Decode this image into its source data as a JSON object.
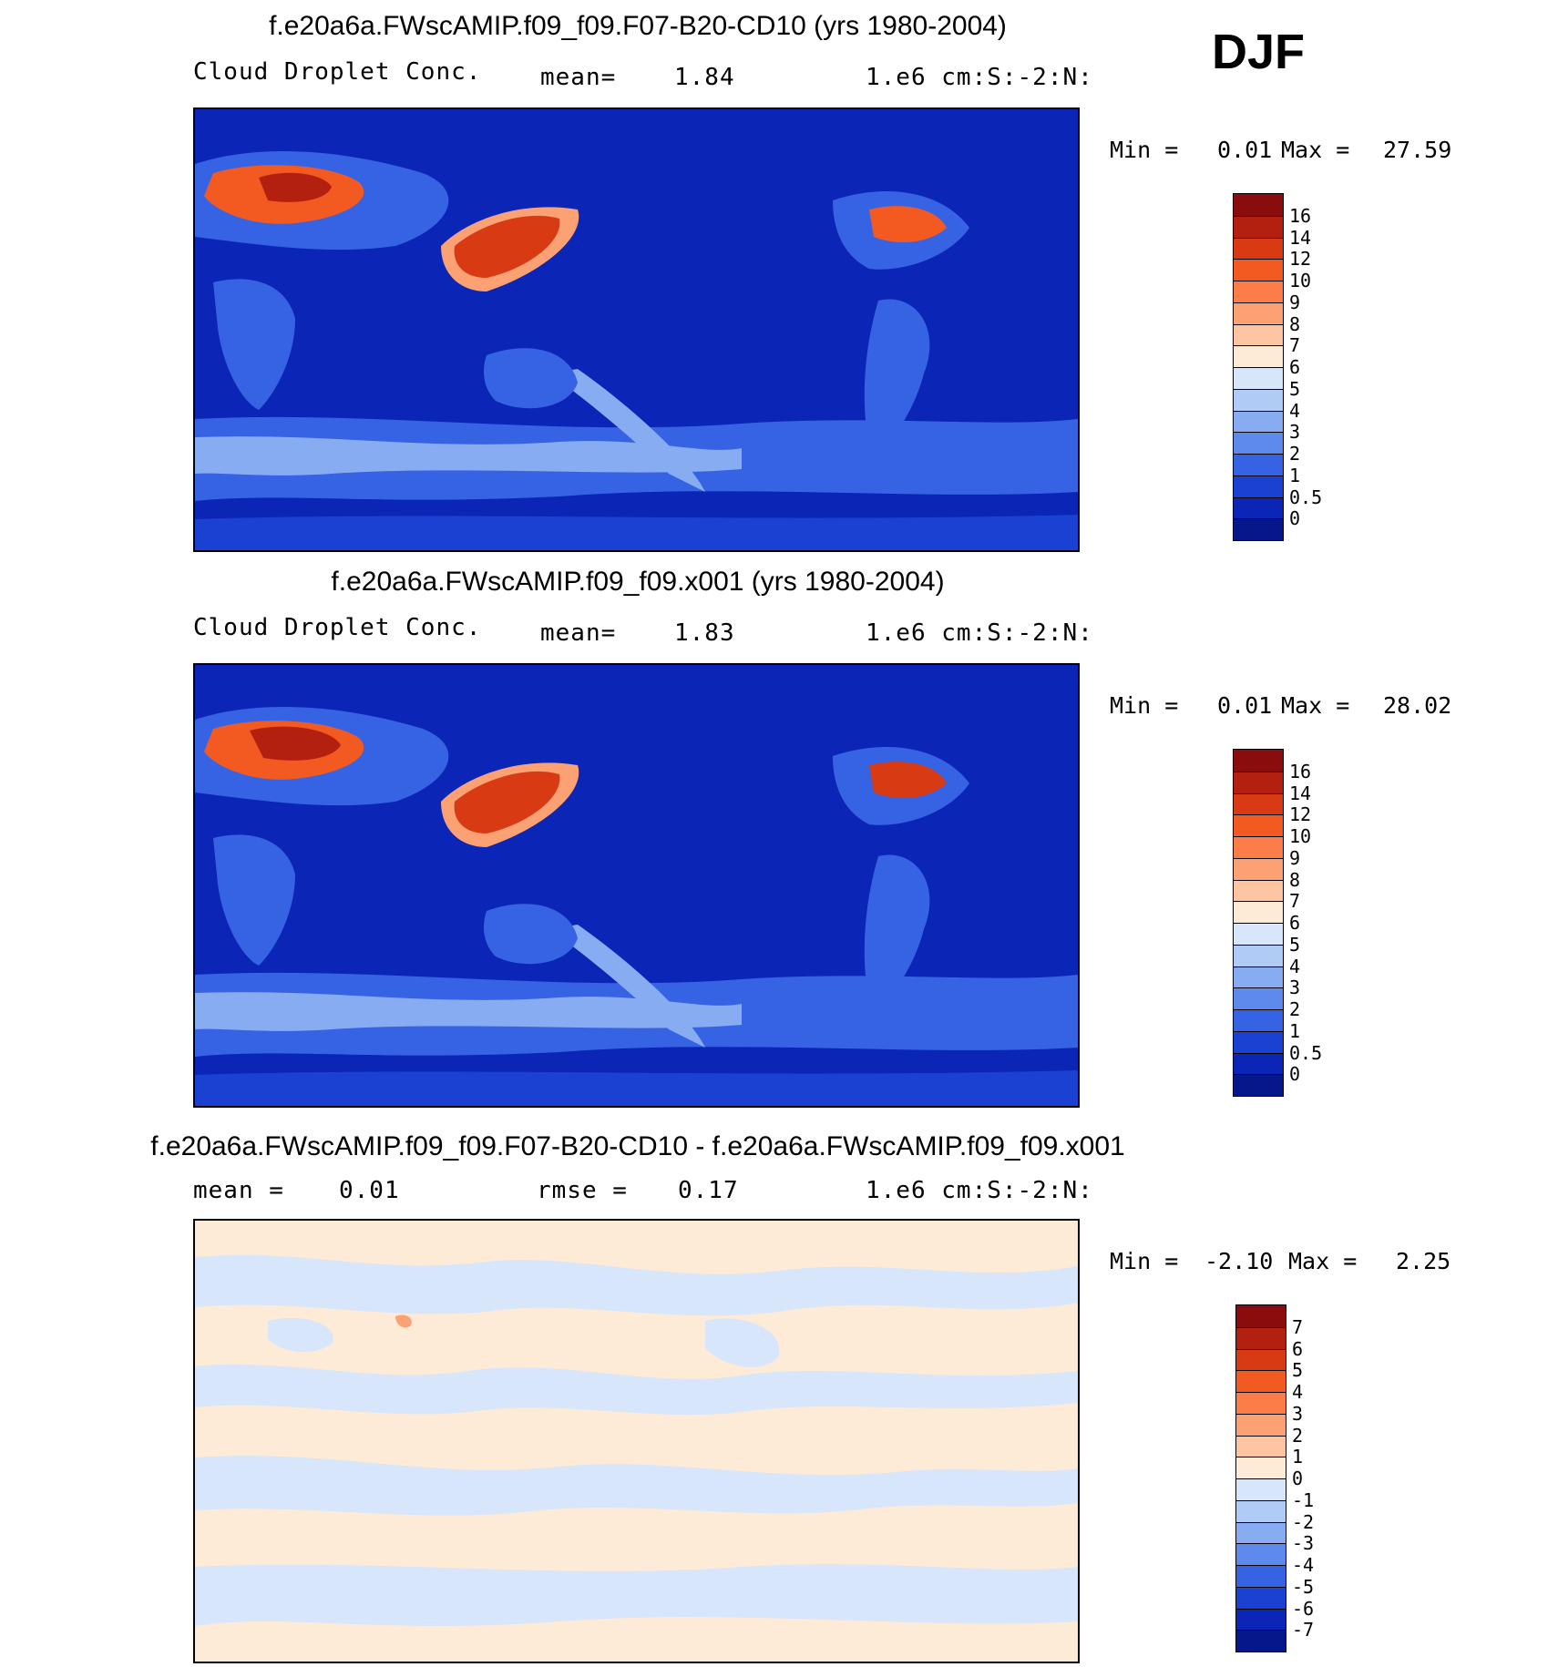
{
  "season": "DJF",
  "panels": [
    {
      "title": "f.e20a6a.FWscAMIP.f09_f09.F07-B20-CD10 (yrs 1980-2004)",
      "left_label": "Cloud Droplet Conc.",
      "mid_label": "mean=",
      "mid_value": "1.84",
      "units": "1.e6 cm:S:-2:N:",
      "min_label": "Min =",
      "min_value": "0.01",
      "max_label": "Max =",
      "max_value": "27.59",
      "colorbar_labels": [
        "16",
        "14",
        "12",
        "10",
        "9",
        "8",
        "7",
        "6",
        "5",
        "4",
        "3",
        "2",
        "1",
        "0.5",
        "0"
      ],
      "colorbar_colors": [
        "#8b0c0c",
        "#b3200f",
        "#d83a13",
        "#f25a22",
        "#fc7d47",
        "#fca173",
        "#fdc5a2",
        "#fdebd8",
        "#d7e6fa",
        "#b0cbf6",
        "#87acf2",
        "#5d8aec",
        "#3663e4",
        "#1b41d2",
        "#0b26b6",
        "#05178a"
      ]
    },
    {
      "title": "f.e20a6a.FWscAMIP.f09_f09.x001 (yrs 1980-2004)",
      "left_label": "Cloud Droplet Conc.",
      "mid_label": "mean=",
      "mid_value": "1.83",
      "units": "1.e6 cm:S:-2:N:",
      "min_label": "Min =",
      "min_value": "0.01",
      "max_label": "Max =",
      "max_value": "28.02",
      "colorbar_labels": [
        "16",
        "14",
        "12",
        "10",
        "9",
        "8",
        "7",
        "6",
        "5",
        "4",
        "3",
        "2",
        "1",
        "0.5",
        "0"
      ],
      "colorbar_colors": [
        "#8b0c0c",
        "#b3200f",
        "#d83a13",
        "#f25a22",
        "#fc7d47",
        "#fca173",
        "#fdc5a2",
        "#fdebd8",
        "#d7e6fa",
        "#b0cbf6",
        "#87acf2",
        "#5d8aec",
        "#3663e4",
        "#1b41d2",
        "#0b26b6",
        "#05178a"
      ]
    },
    {
      "title": "f.e20a6a.FWscAMIP.f09_f09.F07-B20-CD10 - f.e20a6a.FWscAMIP.f09_f09.x001",
      "left_label": "mean =",
      "left_value": "0.01",
      "mid_label": "rmse =",
      "mid_value": "0.17",
      "units": "1.e6 cm:S:-2:N:",
      "min_label": "Min =",
      "min_value": "-2.10",
      "max_label": "Max =",
      "max_value": "2.25",
      "colorbar_labels": [
        "7",
        "6",
        "5",
        "4",
        "3",
        "2",
        "1",
        "0",
        "-1",
        "-2",
        "-3",
        "-4",
        "-5",
        "-6",
        "-7"
      ],
      "colorbar_colors": [
        "#8b0c0c",
        "#b3200f",
        "#d83a13",
        "#f25a22",
        "#fc7d47",
        "#fca173",
        "#fdc5a2",
        "#fdebd8",
        "#d7e6fa",
        "#b0cbf6",
        "#87acf2",
        "#5d8aec",
        "#3663e4",
        "#1b41d2",
        "#0b26b6",
        "#05178a"
      ]
    }
  ]
}
